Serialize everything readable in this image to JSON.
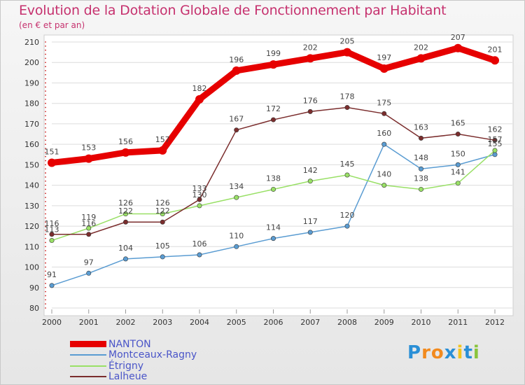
{
  "chart_data": {
    "type": "line",
    "title": "Evolution de la Dotation Globale de Fonctionnement par Habitant",
    "subtitle": "(en € et par an)",
    "categories": [
      "2000",
      "2001",
      "2002",
      "2003",
      "2004",
      "2005",
      "2006",
      "2007",
      "2008",
      "2009",
      "2010",
      "2011",
      "2012"
    ],
    "ylim": [
      80,
      210
    ],
    "yticks": [
      80,
      90,
      100,
      110,
      120,
      130,
      140,
      150,
      160,
      170,
      180,
      190,
      200,
      210
    ],
    "grid": true,
    "legend_position": "bottom-left",
    "series": [
      {
        "name": "NANTON",
        "color": "#e60000",
        "values": [
          151,
          153,
          156,
          157,
          182,
          196,
          199,
          202,
          205,
          197,
          202,
          207,
          201
        ],
        "labels": [
          "151",
          "153",
          "156",
          "157",
          "182",
          "196",
          "199",
          "202",
          "205",
          "197",
          "202",
          "207",
          "201"
        ]
      },
      {
        "name": "Montceaux-Ragny",
        "color": "#5a9cd2",
        "values": [
          91,
          97,
          104,
          105,
          106,
          110,
          114,
          117,
          120,
          160,
          148,
          150,
          155
        ],
        "labels": [
          "91",
          "97",
          "104",
          "105",
          "106",
          "110",
          "114",
          "117",
          "120",
          "160",
          "148",
          "150",
          "155"
        ]
      },
      {
        "name": "Étrigny",
        "color": "#99e066",
        "values": [
          113,
          119,
          126,
          126,
          130,
          134,
          138,
          142,
          145,
          140,
          138,
          141,
          157
        ],
        "labels": [
          "113",
          "119",
          "126",
          "126",
          "130",
          "134",
          "138",
          "142",
          "145",
          "140",
          "138",
          "141",
          "157"
        ]
      },
      {
        "name": "Lalheue",
        "color": "#7b2d2d",
        "values": [
          116,
          116,
          122,
          122,
          133,
          167,
          172,
          176,
          178,
          175,
          163,
          165,
          162
        ],
        "labels": [
          "116",
          "116",
          "122",
          "122",
          "133",
          "167",
          "172",
          "176",
          "178",
          "175",
          "163",
          "165",
          "162"
        ]
      }
    ]
  },
  "logo": {
    "letters": [
      "P",
      "r",
      "o",
      "x",
      "i",
      "t",
      "i"
    ],
    "colors": [
      "#2a8fd6",
      "#f28a1e",
      "#f28a1e",
      "#2a8fd6",
      "#f2c41e",
      "#2a8fd6",
      "#8ac43c"
    ]
  }
}
